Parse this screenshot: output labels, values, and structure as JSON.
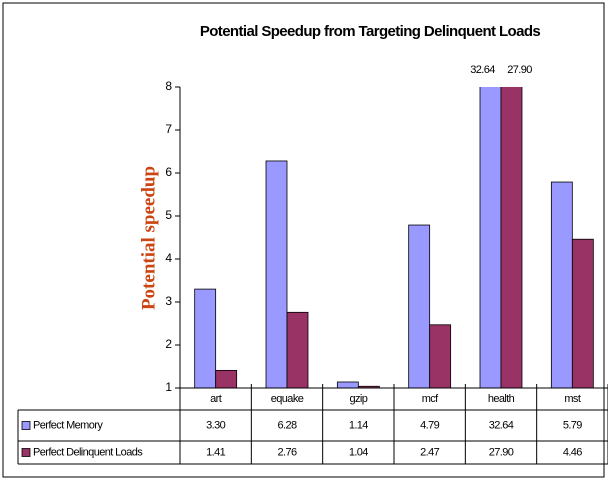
{
  "chart_data": {
    "type": "bar",
    "title": "Potential Speedup from Targeting Delinquent Loads",
    "y_label": "Potential speedup",
    "categories": [
      "art",
      "equake",
      "gzip",
      "mcf",
      "health",
      "mst"
    ],
    "series": [
      {
        "name": "Perfect Memory",
        "color": "#9999ff",
        "values": [
          3.3,
          6.28,
          1.14,
          4.79,
          32.64,
          5.79
        ],
        "value_labels": [
          "3.30",
          "6.28",
          "1.14",
          "4.79",
          "32.64",
          "5.79"
        ]
      },
      {
        "name": "Perfect Delinquent Loads",
        "color": "#993366",
        "values": [
          1.41,
          2.76,
          1.04,
          2.47,
          27.9,
          4.46
        ],
        "value_labels": [
          "1.41",
          "2.76",
          "1.04",
          "2.47",
          "27.90",
          "4.46"
        ]
      }
    ],
    "ylim": [
      1,
      8
    ],
    "yticks": [
      1,
      2,
      3,
      4,
      5,
      6,
      7,
      8
    ],
    "grid": false
  }
}
